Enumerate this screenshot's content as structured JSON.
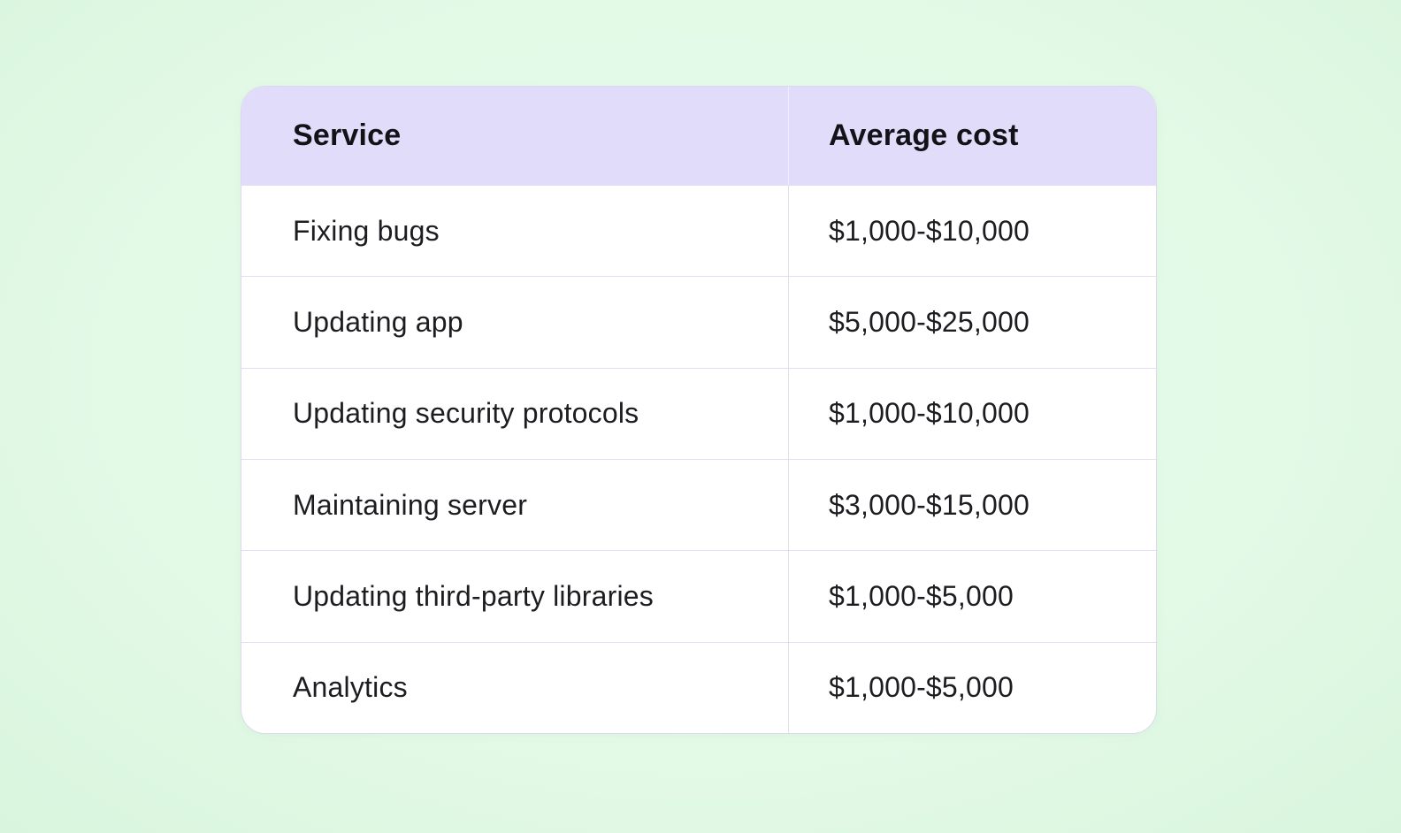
{
  "table": {
    "columns": [
      {
        "label": "Service"
      },
      {
        "label": "Average cost"
      }
    ],
    "rows": [
      {
        "service": "Fixing bugs",
        "cost": "$1,000-$10,000"
      },
      {
        "service": "Updating app",
        "cost": "$5,000-$25,000"
      },
      {
        "service": "Updating security protocols",
        "cost": "$1,000-$10,000"
      },
      {
        "service": "Maintaining server",
        "cost": "$3,000-$15,000"
      },
      {
        "service": "Updating third-party libraries",
        "cost": "$1,000-$5,000"
      },
      {
        "service": "Analytics",
        "cost": "$1,000-$5,000"
      }
    ]
  },
  "colors": {
    "page_background": "#e3fae7",
    "card_background": "#ffffff",
    "header_background": "#e0dcf9",
    "divider": "#e2e0f0",
    "header_text": "#131217",
    "body_text": "#1d1c21"
  },
  "chart_data": {
    "type": "table",
    "title": "",
    "columns": [
      "Service",
      "Average cost"
    ],
    "rows": [
      [
        "Fixing bugs",
        "$1,000-$10,000"
      ],
      [
        "Updating app",
        "$5,000-$25,000"
      ],
      [
        "Updating security protocols",
        "$1,000-$10,000"
      ],
      [
        "Maintaining server",
        "$3,000-$15,000"
      ],
      [
        "Updating third-party libraries",
        "$1,000-$5,000"
      ],
      [
        "Analytics",
        "$1,000-$5,000"
      ]
    ]
  }
}
